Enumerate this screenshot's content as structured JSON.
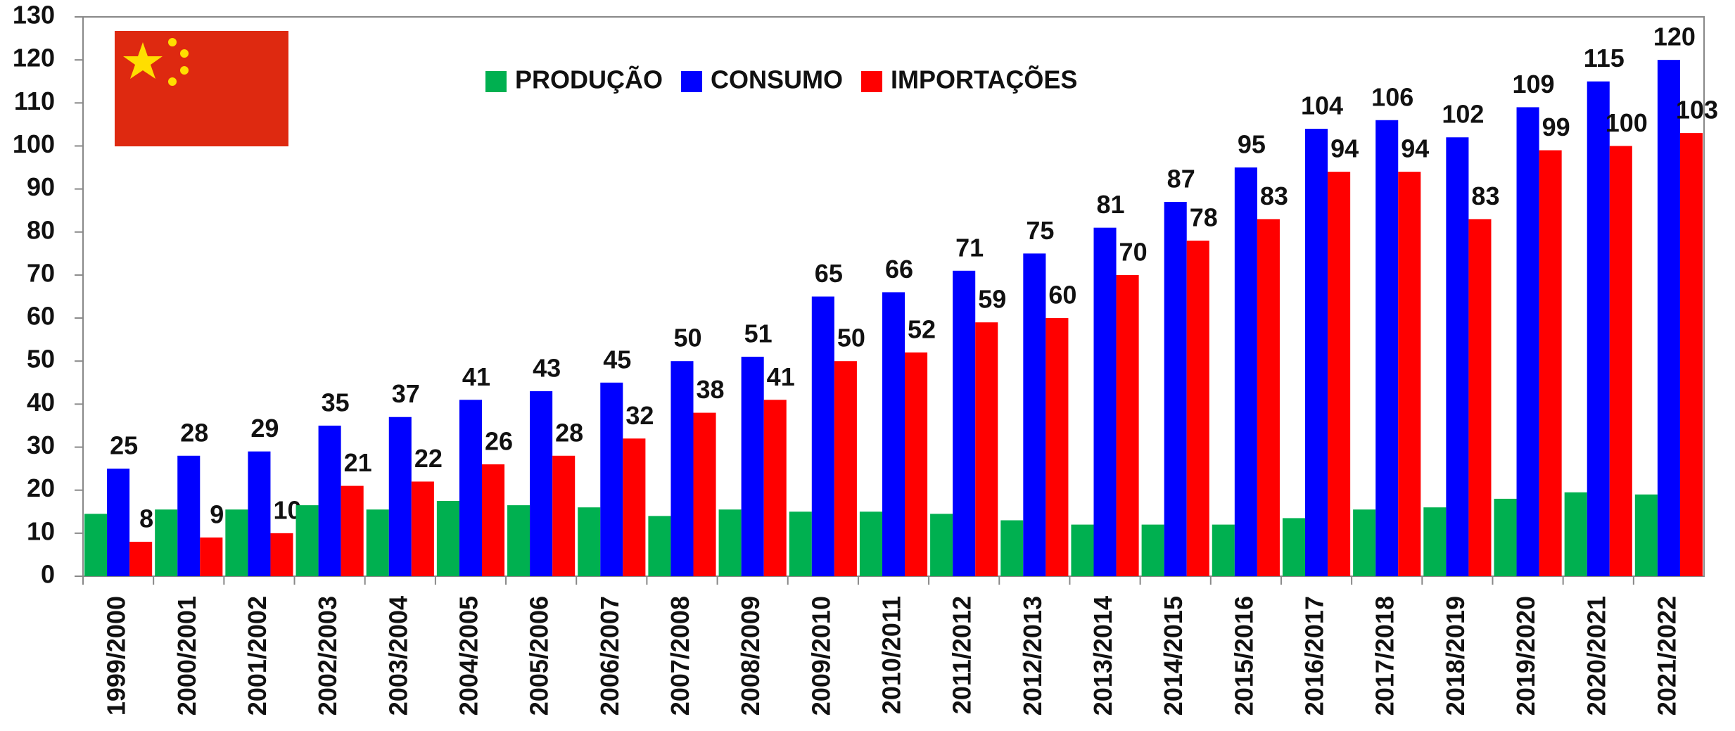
{
  "chart_data": {
    "type": "bar",
    "categories": [
      "1999/2000",
      "2000/2001",
      "2001/2002",
      "2002/2003",
      "2003/2004",
      "2004/2005",
      "2005/2006",
      "2006/2007",
      "2007/2008",
      "2008/2009",
      "2009/2010",
      "2010/2011",
      "2011/2012",
      "2012/2013",
      "2013/2014",
      "2014/2015",
      "2015/2016",
      "2016/2017",
      "2017/2018",
      "2018/2019",
      "2019/2020",
      "2020/2021",
      "2021/2022"
    ],
    "series": [
      {
        "name": "PRODUÇÃO",
        "color": "#00b050",
        "values": [
          14.5,
          15.5,
          15.5,
          16.5,
          15.5,
          17.5,
          16.5,
          16,
          14,
          15.5,
          15,
          15,
          14.5,
          13,
          12,
          12,
          12,
          13.5,
          15.5,
          16,
          18,
          19.5,
          19
        ]
      },
      {
        "name": "CONSUMO",
        "color": "#0000ff",
        "values": [
          25,
          28,
          29,
          35,
          37,
          41,
          43,
          45,
          50,
          51,
          65,
          66,
          71,
          75,
          81,
          87,
          95,
          104,
          106,
          102,
          109,
          115,
          120
        ],
        "labels": true
      },
      {
        "name": "IMPORTAÇÕES",
        "color": "#ff0000",
        "values": [
          8,
          9,
          10,
          21,
          22,
          26,
          28,
          32,
          38,
          41,
          50,
          52,
          59,
          60,
          70,
          78,
          83,
          94,
          94,
          83,
          99,
          100,
          103
        ],
        "labels": true
      }
    ],
    "ylim": [
      0,
      130
    ],
    "yticks": [
      0,
      10,
      20,
      30,
      40,
      50,
      60,
      70,
      80,
      90,
      100,
      110,
      120,
      130
    ]
  }
}
